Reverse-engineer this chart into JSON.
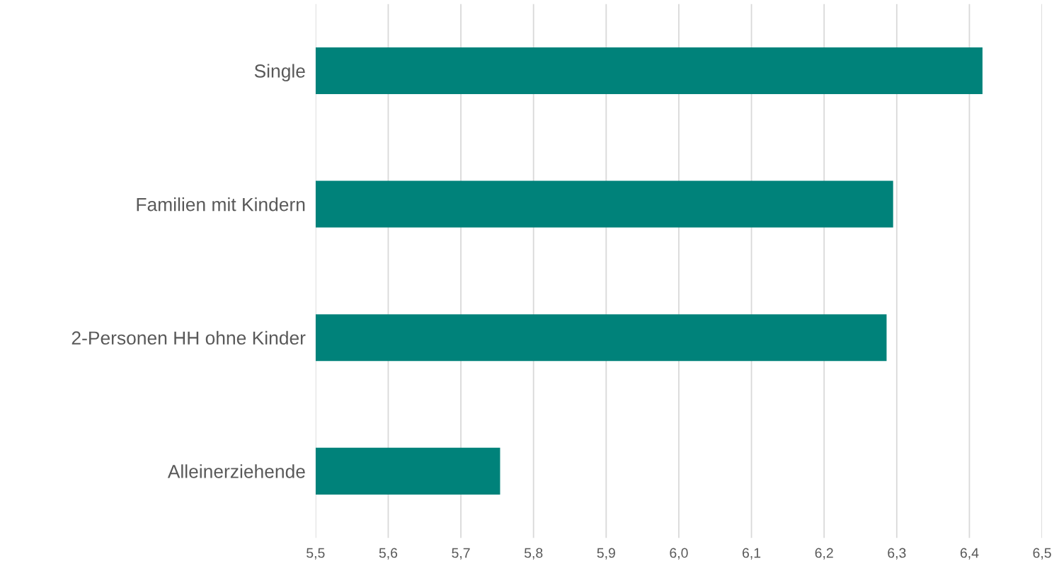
{
  "chart_data": {
    "type": "bar",
    "orientation": "horizontal",
    "categories": [
      "Single",
      "Familien mit Kindern",
      "2-Personen HH ohne Kinder",
      "Alleinerziehende"
    ],
    "values": [
      6.418,
      6.295,
      6.286,
      5.754
    ],
    "color": "#00827a",
    "xlim": [
      5.5,
      6.5
    ],
    "xticks": [
      {
        "value": 5.5,
        "label": "5,5"
      },
      {
        "value": 5.6,
        "label": "5,6"
      },
      {
        "value": 5.7,
        "label": "5,7"
      },
      {
        "value": 5.8,
        "label": "5,8"
      },
      {
        "value": 5.9,
        "label": "5,9"
      },
      {
        "value": 6.0,
        "label": "6,0"
      },
      {
        "value": 6.1,
        "label": "6,1"
      },
      {
        "value": 6.2,
        "label": "6,2"
      },
      {
        "value": 6.3,
        "label": "6,3"
      },
      {
        "value": 6.4,
        "label": "6,4"
      },
      {
        "value": 6.5,
        "label": "6,5"
      }
    ],
    "grid": "x",
    "legend": false
  }
}
